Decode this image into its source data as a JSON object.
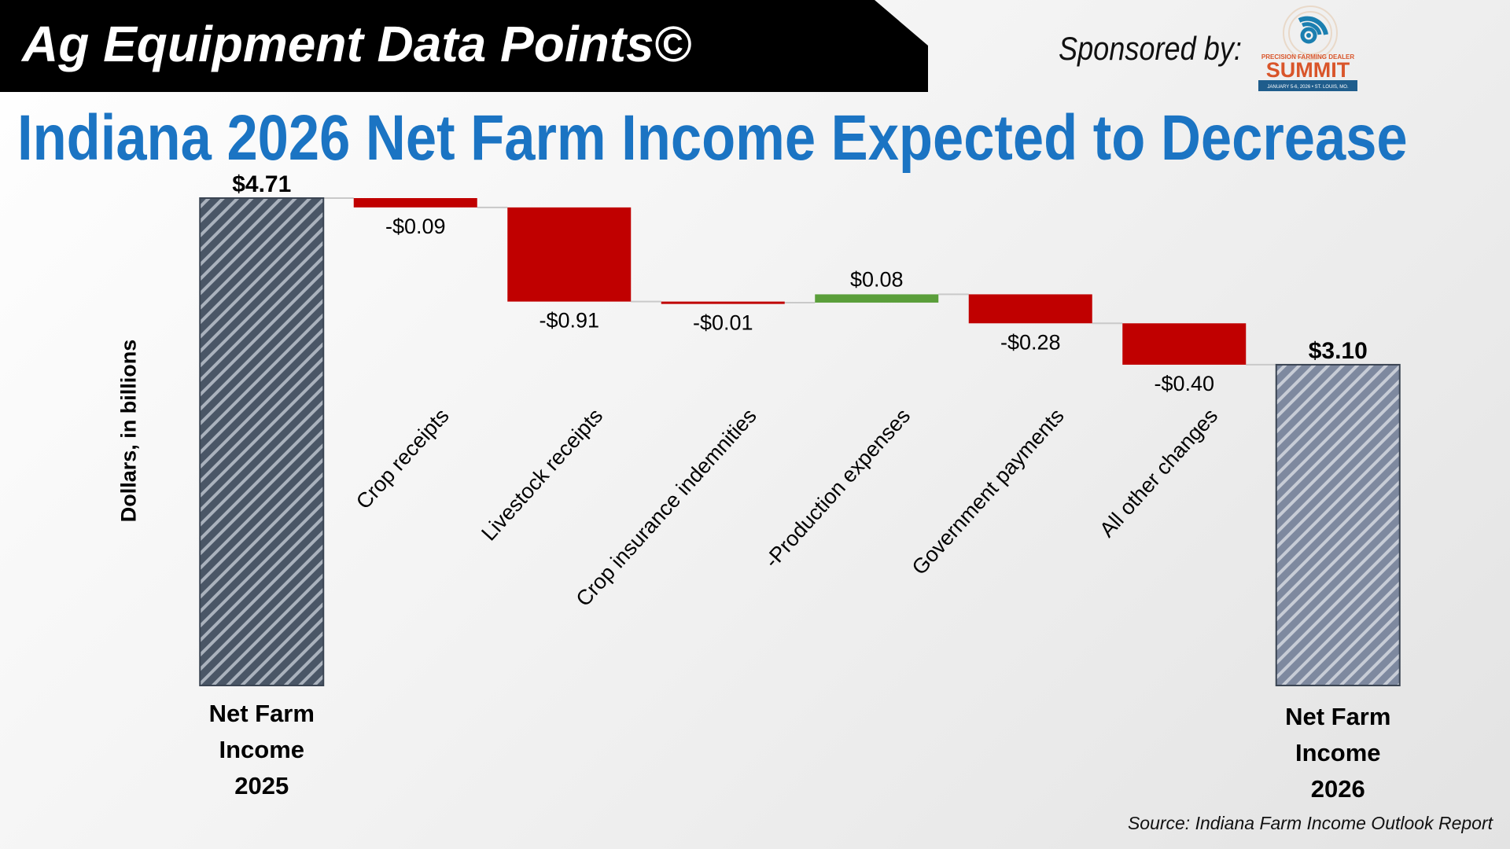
{
  "banner": {
    "title": "Ag Equipment Data Points©"
  },
  "sponsor": {
    "label": "Sponsored by:",
    "logo_name": "Precision Farming Dealer Summit logo"
  },
  "headline": "Indiana 2026 Net Farm Income Expected to Decrease",
  "source": "Source: Indiana Farm Income Outlook Report",
  "colors": {
    "headline": "#1b74c3",
    "total_2025": "#4a5666",
    "total_2026": "#7e899f",
    "decrease": "#c00000",
    "increase": "#5a9e3a"
  },
  "chart_data": {
    "type": "waterfall",
    "ylabel": "Dollars, in billions",
    "ylim": [
      0,
      4.71
    ],
    "grid": false,
    "legend": "none",
    "steps": [
      {
        "label": "Net Farm\nIncome\n2025",
        "value": 4.71,
        "kind": "total",
        "display": "$4.71"
      },
      {
        "label": "Crop receipts",
        "value": -0.09,
        "kind": "delta",
        "display": "-$0.09"
      },
      {
        "label": "Livestock receipts",
        "value": -0.91,
        "kind": "delta",
        "display": "-$0.91"
      },
      {
        "label": "Crop insurance indemnities",
        "value": -0.01,
        "kind": "delta",
        "display": "-$0.01"
      },
      {
        "label": "-Production expenses",
        "value": 0.08,
        "kind": "delta",
        "display": "$0.08"
      },
      {
        "label": "Government payments",
        "value": -0.28,
        "kind": "delta",
        "display": "-$0.28"
      },
      {
        "label": "All other changes",
        "value": -0.4,
        "kind": "delta",
        "display": "-$0.40"
      },
      {
        "label": "Net Farm\nIncome\n2026",
        "value": 3.1,
        "kind": "total",
        "display": "$3.10"
      }
    ]
  }
}
